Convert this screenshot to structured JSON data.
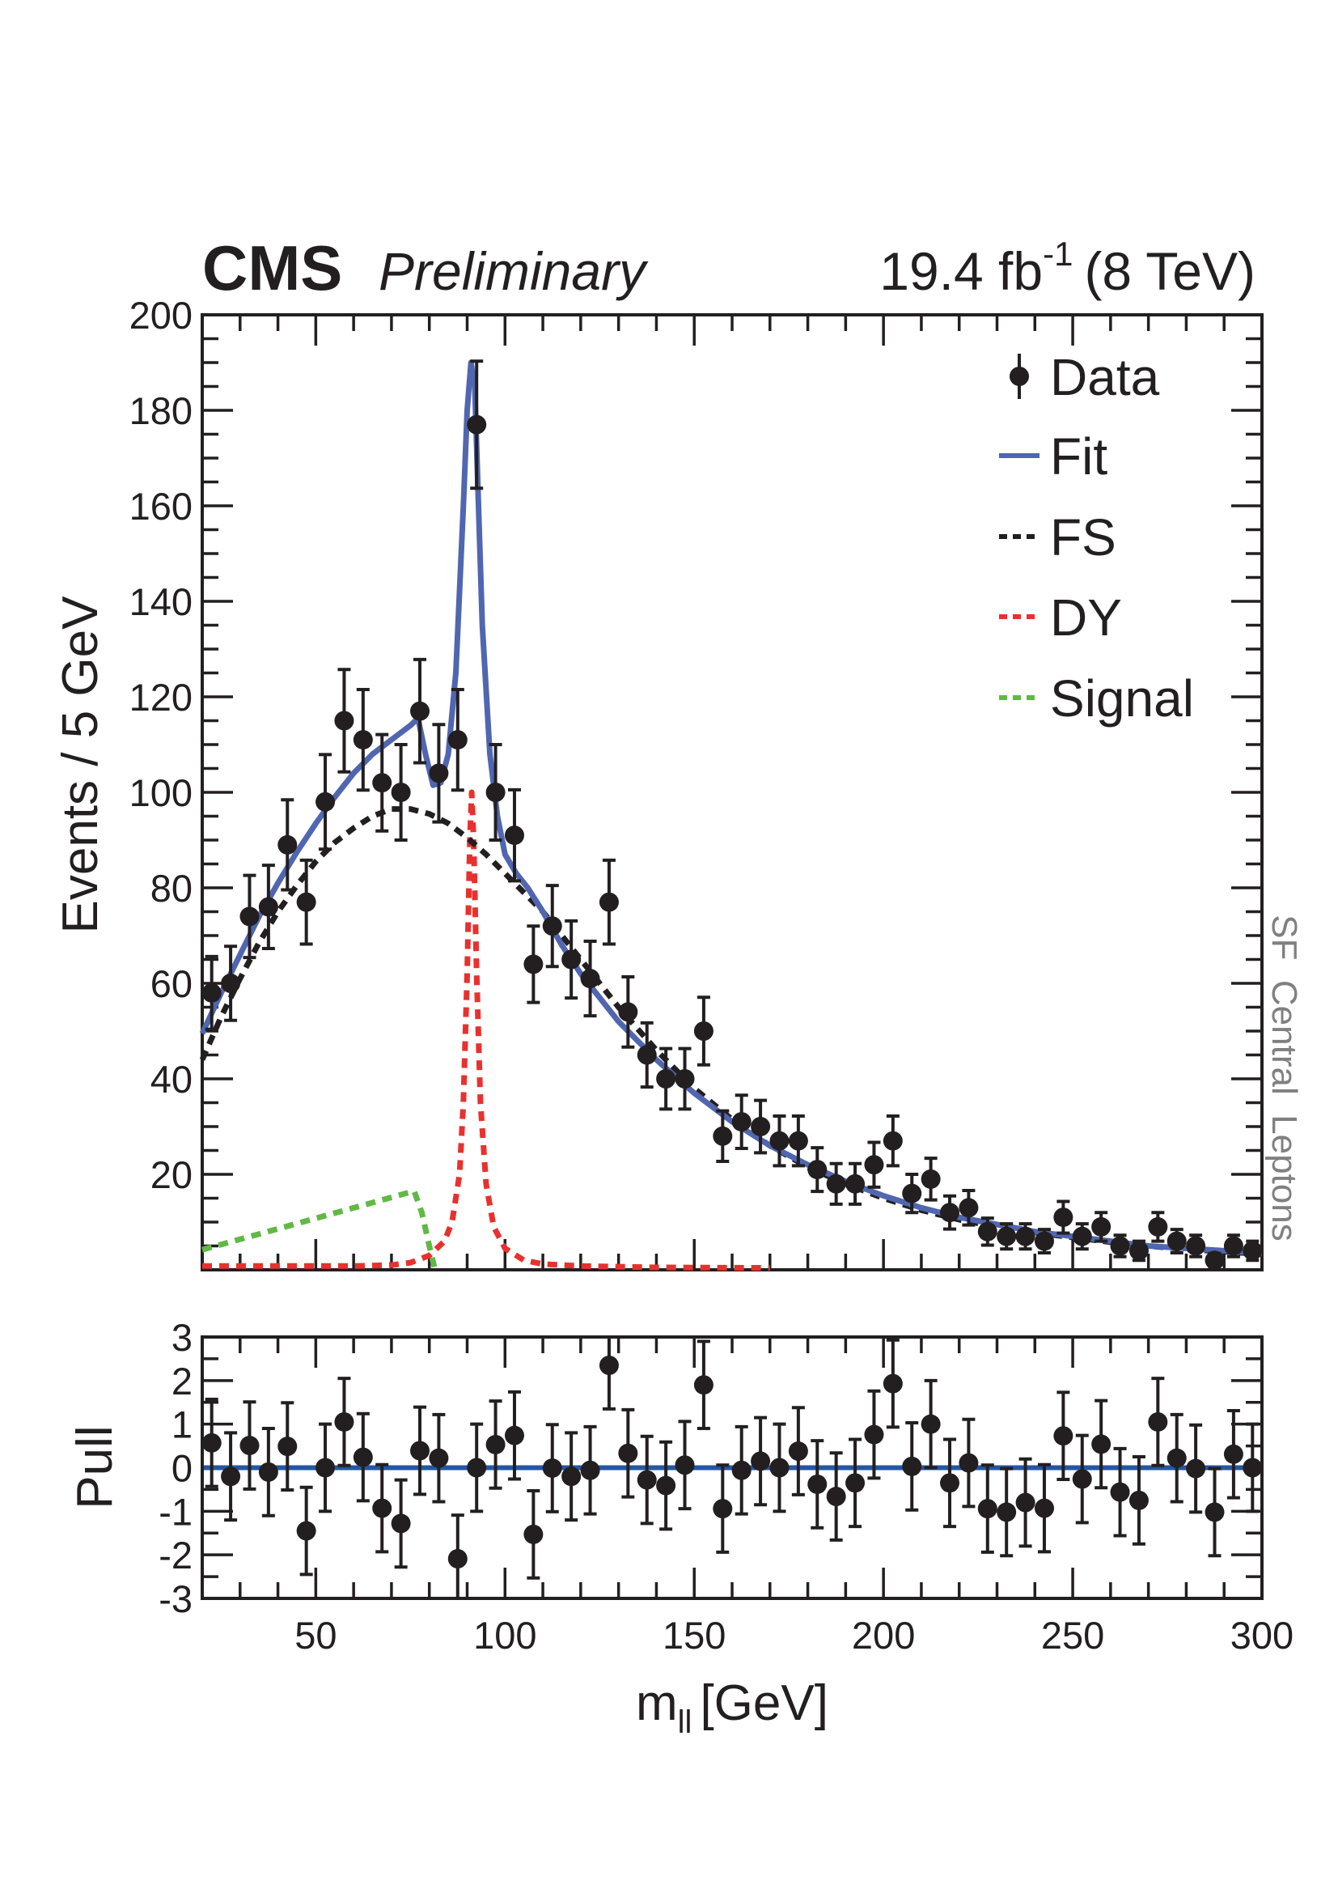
{
  "header": {
    "experiment": "CMS",
    "status": "Preliminary",
    "lumi_value": "19.4 fb",
    "lumi_exp": "-1",
    "energy": "(8 TeV)"
  },
  "side_label": "SF  Central  Leptons",
  "colors": {
    "fit": "#5066b0",
    "fs": "#231f20",
    "dy": "#e8312e",
    "signal": "#62b846",
    "data": "#231f20",
    "pull_line": "#2456a6",
    "side_text": "#808080"
  },
  "legend": [
    {
      "label": "Data",
      "style": "marker"
    },
    {
      "label": "Fit",
      "style": "solid"
    },
    {
      "label": "FS",
      "style": "dotted"
    },
    {
      "label": "DY",
      "style": "dotted"
    },
    {
      "label": "Signal",
      "style": "dotted"
    }
  ],
  "chart_data": [
    {
      "type": "scatter",
      "title": "CMS Preliminary 19.4 fb-1 (8 TeV)",
      "xlabel": "m_ll [GeV]",
      "ylabel": "Events / 5 GeV",
      "xlim": [
        20,
        300
      ],
      "ylim": [
        0,
        200
      ],
      "yticks": [
        20,
        40,
        60,
        80,
        100,
        120,
        140,
        160,
        180,
        200
      ],
      "xticks": [
        50,
        100,
        150,
        200,
        250,
        300
      ],
      "legend_position": "top-right",
      "grid": false,
      "x": [
        22.5,
        27.5,
        32.5,
        37.5,
        42.5,
        47.5,
        52.5,
        57.5,
        62.5,
        67.5,
        72.5,
        77.5,
        82.5,
        87.5,
        92.5,
        97.5,
        102.5,
        107.5,
        112.5,
        117.5,
        122.5,
        127.5,
        132.5,
        137.5,
        142.5,
        147.5,
        152.5,
        157.5,
        162.5,
        167.5,
        172.5,
        177.5,
        182.5,
        187.5,
        192.5,
        197.5,
        202.5,
        207.5,
        212.5,
        217.5,
        222.5,
        227.5,
        232.5,
        237.5,
        242.5,
        247.5,
        252.5,
        257.5,
        262.5,
        267.5,
        272.5,
        277.5,
        282.5,
        287.5,
        292.5,
        297.5
      ],
      "series": [
        {
          "name": "Data",
          "kind": "points_with_errors",
          "values": [
            58,
            60,
            74,
            76,
            89,
            77,
            98,
            115,
            111,
            102,
            100,
            117,
            104,
            111,
            177,
            100,
            91,
            64,
            72,
            65,
            61,
            77,
            54,
            45,
            40,
            40,
            50,
            28,
            31,
            30,
            27,
            27,
            21,
            18,
            18,
            22,
            27,
            16,
            19,
            12,
            13,
            8,
            7,
            7,
            6,
            11,
            7,
            9,
            5,
            4,
            9,
            6,
            5,
            2,
            5,
            4
          ]
        },
        {
          "name": "Fit",
          "kind": "curve",
          "x": [
            20,
            25,
            30,
            35,
            40,
            45,
            50,
            55,
            60,
            65,
            70,
            75,
            77,
            79,
            81,
            83,
            85,
            87,
            89,
            90,
            91,
            92,
            93,
            94,
            96,
            98,
            100,
            103,
            106,
            110,
            115,
            120,
            130,
            140,
            150,
            160,
            170,
            180,
            190,
            200,
            210,
            220,
            230,
            240,
            250,
            260,
            270,
            280,
            290,
            300
          ],
          "values": [
            49.5,
            58,
            66,
            74,
            81,
            87.5,
            93.5,
            99,
            104,
            108,
            111,
            114,
            115.5,
            108,
            101.5,
            102,
            108,
            125,
            160,
            180,
            190,
            185,
            160,
            135,
            108,
            95,
            87,
            83,
            80,
            75,
            68,
            62,
            52,
            44,
            37,
            31,
            26,
            22,
            18.5,
            15.5,
            13,
            11,
            9.5,
            8,
            7,
            6,
            5,
            4.5,
            4,
            3.5
          ]
        },
        {
          "name": "FS",
          "kind": "curve",
          "x": [
            20,
            25,
            30,
            35,
            40,
            45,
            50,
            55,
            60,
            65,
            70,
            75,
            80,
            85,
            90,
            95,
            100,
            105,
            110,
            115,
            120,
            130,
            140,
            150,
            160,
            170,
            180,
            190,
            200,
            210,
            220,
            230,
            240,
            250,
            260,
            270,
            280,
            290,
            300
          ],
          "values": [
            44,
            53,
            61,
            68.5,
            75,
            80.5,
            85.5,
            89.5,
            92.5,
            95,
            96.5,
            96.5,
            95.5,
            93.5,
            90.5,
            87,
            83,
            79,
            75,
            70,
            65,
            55,
            46,
            38,
            31.5,
            26,
            21.5,
            18,
            15,
            12.5,
            10.5,
            9,
            7.8,
            6.8,
            5.8,
            5,
            4.3,
            3.8,
            3.3
          ]
        },
        {
          "name": "DY",
          "kind": "curve",
          "x": [
            20,
            40,
            60,
            70,
            75,
            80,
            84,
            86,
            88,
            89,
            90,
            90.7,
            91.2,
            91.7,
            92.5,
            93.5,
            95,
            97,
            100,
            105,
            110,
            120,
            140,
            170
          ],
          "values": [
            0.8,
            0.8,
            0.8,
            1,
            1.5,
            3,
            6,
            10,
            20,
            35,
            62,
            90,
            100,
            90,
            62,
            35,
            18,
            9,
            4.5,
            2,
            1.2,
            0.8,
            0.5,
            0.4
          ]
        },
        {
          "name": "Signal",
          "kind": "curve",
          "x": [
            20,
            76,
            78,
            80,
            81.5
          ],
          "values": [
            4.2,
            16.5,
            12,
            5,
            0
          ]
        }
      ]
    },
    {
      "type": "scatter",
      "xlabel": "m_ll [GeV]",
      "ylabel": "Pull",
      "xlim": [
        20,
        300
      ],
      "ylim": [
        -3,
        3
      ],
      "yticks": [
        -3,
        -2,
        -1,
        0,
        1,
        2,
        3
      ],
      "xticks": [
        50,
        100,
        150,
        200,
        250,
        300
      ],
      "reference_line": 0,
      "x": [
        22.5,
        27.5,
        32.5,
        37.5,
        42.5,
        47.5,
        52.5,
        57.5,
        62.5,
        67.5,
        72.5,
        77.5,
        82.5,
        87.5,
        92.5,
        97.5,
        102.5,
        107.5,
        112.5,
        117.5,
        122.5,
        127.5,
        132.5,
        137.5,
        142.5,
        147.5,
        152.5,
        157.5,
        162.5,
        167.5,
        172.5,
        177.5,
        182.5,
        187.5,
        192.5,
        197.5,
        202.5,
        207.5,
        212.5,
        217.5,
        222.5,
        227.5,
        232.5,
        237.5,
        242.5,
        247.5,
        252.5,
        257.5,
        262.5,
        267.5,
        272.5,
        277.5,
        282.5,
        287.5,
        292.5,
        297.5
      ],
      "series": [
        {
          "name": "Pull",
          "values": [
            0.57,
            -0.2,
            0.51,
            -0.1,
            0.49,
            -1.45,
            0.0,
            1.05,
            0.24,
            -0.93,
            -1.28,
            0.39,
            0.22,
            -2.09,
            0.0,
            0.53,
            0.74,
            -1.53,
            -0.01,
            -0.2,
            -0.06,
            2.35,
            0.33,
            -0.28,
            -0.41,
            0.06,
            1.9,
            -0.94,
            -0.06,
            0.15,
            0.0,
            0.38,
            -0.38,
            -0.66,
            -0.35,
            0.76,
            1.93,
            0.03,
            1.0,
            -0.35,
            0.11,
            -0.94,
            -1.02,
            -0.8,
            -0.93,
            0.73,
            -0.26,
            0.54,
            -0.56,
            -0.75,
            1.05,
            0.22,
            -0.02,
            -1.02,
            0.31,
            0.0
          ],
          "errors": 1.0
        }
      ]
    }
  ]
}
